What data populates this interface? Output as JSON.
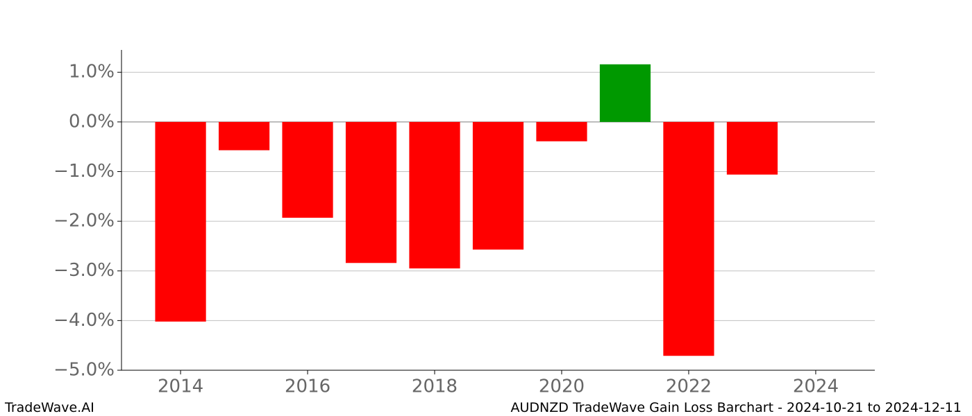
{
  "chart_data": {
    "type": "bar",
    "title": "AUDNZD TradeWave Gain Loss Barchart - 2024-10-21 to 2024-12-11",
    "watermark": "TradeWave.AI",
    "x": [
      2014,
      2015,
      2016,
      2017,
      2018,
      2019,
      2020,
      2021,
      2022,
      2023
    ],
    "values": [
      -4.02,
      -0.57,
      -1.93,
      -2.84,
      -2.95,
      -2.57,
      -0.39,
      1.16,
      -4.71,
      -1.06
    ],
    "colors": [
      "#ff0000",
      "#ff0000",
      "#ff0000",
      "#ff0000",
      "#ff0000",
      "#ff0000",
      "#ff0000",
      "#009900",
      "#ff0000",
      "#ff0000"
    ],
    "bar_width": 0.8,
    "xlim": [
      2013.07,
      2024.93
    ],
    "xticks": [
      2014,
      2016,
      2018,
      2020,
      2022,
      2024
    ],
    "ylim": [
      -5.0,
      1.45
    ],
    "yticks": [
      {
        "value": 1,
        "label": "1.0%"
      },
      {
        "value": 0,
        "label": "0.0%"
      },
      {
        "value": -1,
        "label": "−1.0%"
      },
      {
        "value": -2,
        "label": "−2.0%"
      },
      {
        "value": -3,
        "label": "−3.0%"
      },
      {
        "value": -4,
        "label": "−4.0%"
      },
      {
        "value": -5,
        "label": "−5.0%"
      }
    ],
    "grid": true
  }
}
